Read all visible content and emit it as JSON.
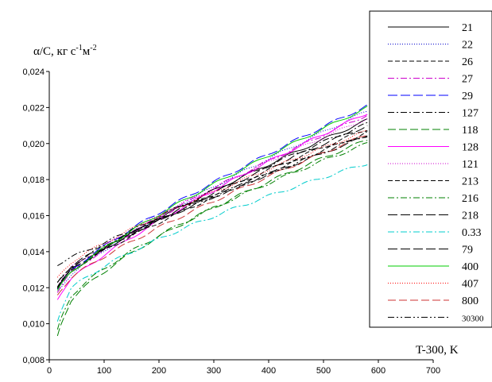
{
  "chart_data": {
    "type": "line",
    "ylabel_main": "α/C, кг с",
    "ylabel_sup1": "-1",
    "ylabel_mid": "м",
    "ylabel_sup2": "-2",
    "xlabel": "T-300, K",
    "xlim": [
      0,
      700
    ],
    "ylim": [
      0.008,
      0.024
    ],
    "x_ticks": [
      0,
      100,
      200,
      300,
      400,
      500,
      600,
      700
    ],
    "y_ticks": [
      "0,008",
      "0,010",
      "0,012",
      "0,014",
      "0,016",
      "0,018",
      "0,020",
      "0,022",
      "0,024"
    ],
    "grid": false,
    "legend_position": "right",
    "series": [
      {
        "name": "21",
        "color": "#000000",
        "dash": "",
        "start": 0.0122,
        "end": 0.0213,
        "shape": "std"
      },
      {
        "name": "22",
        "color": "#0000cc",
        "dash": "1,2",
        "start": 0.012,
        "end": 0.0218,
        "shape": "std"
      },
      {
        "name": "26",
        "color": "#000000",
        "dash": "6,3",
        "start": 0.0124,
        "end": 0.0208,
        "shape": "std"
      },
      {
        "name": "27",
        "color": "#cc00cc",
        "dash": "8,3,2,3",
        "start": 0.0121,
        "end": 0.0216,
        "shape": "std"
      },
      {
        "name": "29",
        "color": "#0000ff",
        "dash": "12,4",
        "start": 0.0122,
        "end": 0.0221,
        "shape": "std"
      },
      {
        "name": "127",
        "color": "#000000",
        "dash": "8,3,2,3",
        "start": 0.0125,
        "end": 0.0211,
        "shape": "std"
      },
      {
        "name": "118",
        "color": "#008000",
        "dash": "10,4",
        "start": 0.0101,
        "end": 0.0202,
        "shape": "low"
      },
      {
        "name": "128",
        "color": "#ff00ff",
        "dash": "",
        "start": 0.0117,
        "end": 0.0217,
        "shape": "std"
      },
      {
        "name": "121",
        "color": "#cc00cc",
        "dash": "1,2",
        "start": 0.0124,
        "end": 0.0214,
        "shape": "std"
      },
      {
        "name": "213",
        "color": "#000000",
        "dash": "6,3",
        "start": 0.0123,
        "end": 0.0206,
        "shape": "std"
      },
      {
        "name": "216",
        "color": "#008000",
        "dash": "8,3,2,3",
        "start": 0.0104,
        "end": 0.02,
        "shape": "low"
      },
      {
        "name": "218",
        "color": "#000000",
        "dash": "12,4",
        "start": 0.0126,
        "end": 0.0204,
        "shape": "std"
      },
      {
        "name": "0.33",
        "color": "#00cccc",
        "dash": "8,3,2,3",
        "start": 0.011,
        "end": 0.0189,
        "shape": "low"
      },
      {
        "name": "79",
        "color": "#000000",
        "dash": "12,4",
        "start": 0.0123,
        "end": 0.021,
        "shape": "std"
      },
      {
        "name": "400",
        "color": "#00cc00",
        "dash": "",
        "start": 0.0121,
        "end": 0.022,
        "shape": "std"
      },
      {
        "name": "407",
        "color": "#ff0000",
        "dash": "1,2",
        "start": 0.0128,
        "end": 0.0207,
        "shape": "std"
      },
      {
        "name": "800",
        "color": "#cc3333",
        "dash": "10,4",
        "start": 0.0119,
        "end": 0.0205,
        "shape": "std"
      },
      {
        "name": "30300",
        "color": "#000000",
        "dash": "8,3,2,3,2,3",
        "start": 0.0133,
        "end": 0.0205,
        "shape": "high"
      }
    ]
  }
}
